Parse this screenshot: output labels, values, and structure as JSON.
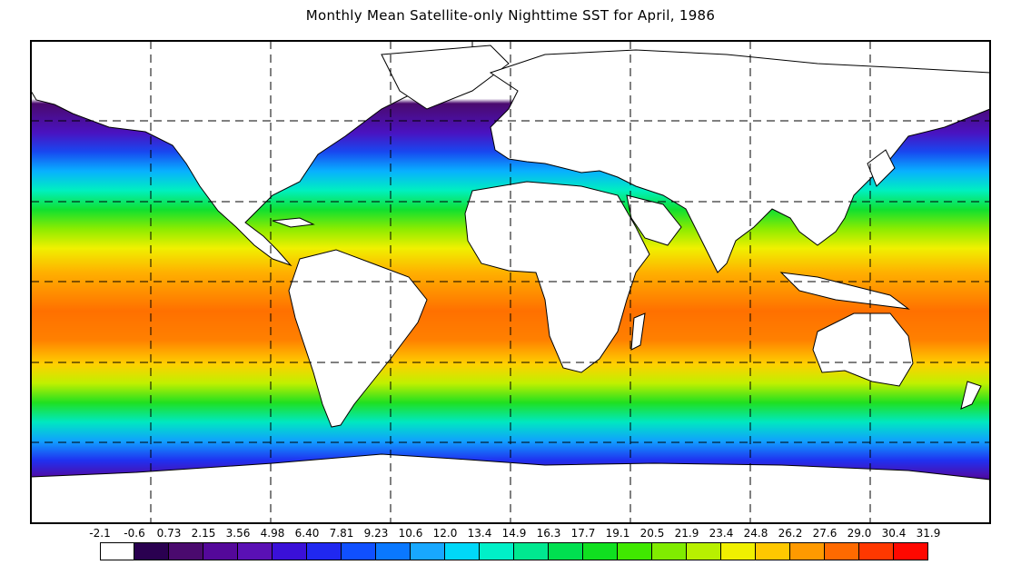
{
  "title": "Monthly Mean Satellite-only Nighttime SST for April, 1986",
  "map": {
    "projection": "equirectangular",
    "graticule": "dashed",
    "land_color": "#ffffff",
    "coastline_color": "#000000"
  },
  "colorbar": {
    "tick_labels": [
      "-2.1",
      "-0.6",
      "0.73",
      "2.15",
      "3.56",
      "4.98",
      "6.40",
      "7.81",
      "9.23",
      "10.6",
      "12.0",
      "13.4",
      "14.9",
      "16.3",
      "17.7",
      "19.1",
      "20.5",
      "21.9",
      "23.4",
      "24.8",
      "26.2",
      "27.6",
      "29.0",
      "30.4",
      "31.9"
    ],
    "colors": [
      "#ffffff",
      "#2a0050",
      "#4a0a6e",
      "#54089a",
      "#5a10b4",
      "#3a10d8",
      "#2028f0",
      "#1050ff",
      "#0a78ff",
      "#18a8ff",
      "#00d8f8",
      "#00f0c8",
      "#00e890",
      "#00e050",
      "#10e020",
      "#40e800",
      "#80ec00",
      "#b8f000",
      "#f0f000",
      "#ffc800",
      "#ff9a00",
      "#ff6a00",
      "#ff3800",
      "#ff0800"
    ]
  },
  "chart_data": {
    "type": "heatmap",
    "title": "Monthly Mean Satellite-only Nighttime SST for April, 1986",
    "variable": "Sea surface temperature (nighttime, satellite-only, monthly mean)",
    "period": "April, 1986",
    "scale_bins": [
      -2.1,
      -0.6,
      0.73,
      2.15,
      3.56,
      4.98,
      6.4,
      7.81,
      9.23,
      10.6,
      12.0,
      13.4,
      14.9,
      16.3,
      17.7,
      19.1,
      20.5,
      21.9,
      23.4,
      24.8,
      26.2,
      27.6,
      29.0,
      30.4,
      31.9
    ],
    "zonal_mean_sst": [
      {
        "lat": 80,
        "value": -0.6
      },
      {
        "lat": 70,
        "value": 0.7
      },
      {
        "lat": 60,
        "value": 4.0
      },
      {
        "lat": 50,
        "value": 9.0
      },
      {
        "lat": 40,
        "value": 14.5
      },
      {
        "lat": 30,
        "value": 20.5
      },
      {
        "lat": 20,
        "value": 25.5
      },
      {
        "lat": 10,
        "value": 27.5
      },
      {
        "lat": 0,
        "value": 28.0
      },
      {
        "lat": -10,
        "value": 27.5
      },
      {
        "lat": -20,
        "value": 25.0
      },
      {
        "lat": -30,
        "value": 20.5
      },
      {
        "lat": -40,
        "value": 15.0
      },
      {
        "lat": -50,
        "value": 7.5
      },
      {
        "lat": -60,
        "value": 2.0
      },
      {
        "lat": -70,
        "value": -0.6
      }
    ]
  }
}
